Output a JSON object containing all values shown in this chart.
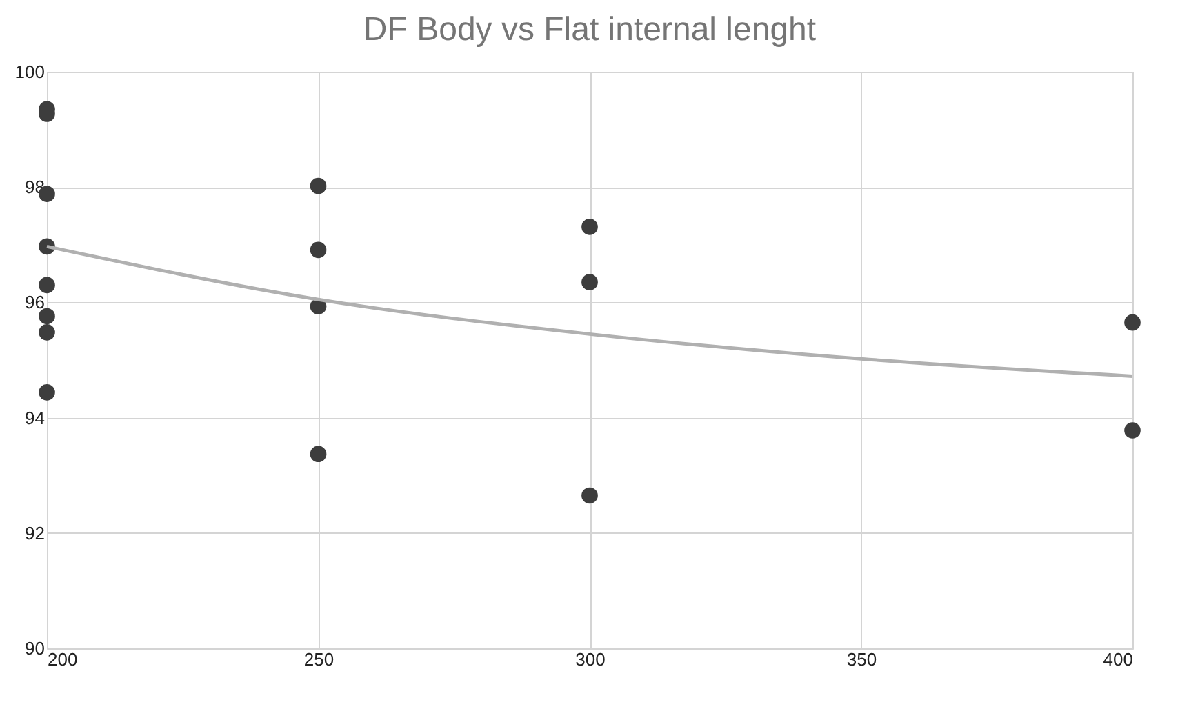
{
  "chart_data": {
    "type": "scatter",
    "title": "DF Body vs Flat internal lenght",
    "series": [
      {
        "color": "#3d3d3d",
        "x": [
          200,
          200,
          200,
          200,
          200,
          200,
          200,
          200,
          250,
          250,
          250,
          250,
          300,
          300,
          300,
          400,
          400
        ],
        "values": [
          99.35,
          99.27,
          97.88,
          96.97,
          96.3,
          95.76,
          95.48,
          94.44,
          98.02,
          96.91,
          95.93,
          93.37,
          97.31,
          96.35,
          92.65,
          95.65,
          93.78
        ]
      },
      {
        "type": "line",
        "color": "#b0b0b0",
        "marker": "none",
        "x": [
          200,
          250,
          300,
          350,
          400
        ],
        "values": [
          96.97,
          96.05,
          95.45,
          95.02,
          94.72
        ]
      }
    ],
    "xlim": [
      200,
      400
    ],
    "xticks": [
      200,
      250,
      300,
      350,
      400
    ],
    "ylim": [
      90,
      100
    ],
    "yticks": [
      90,
      92,
      94,
      96,
      98,
      100
    ],
    "grid": true,
    "marker": "circle"
  }
}
